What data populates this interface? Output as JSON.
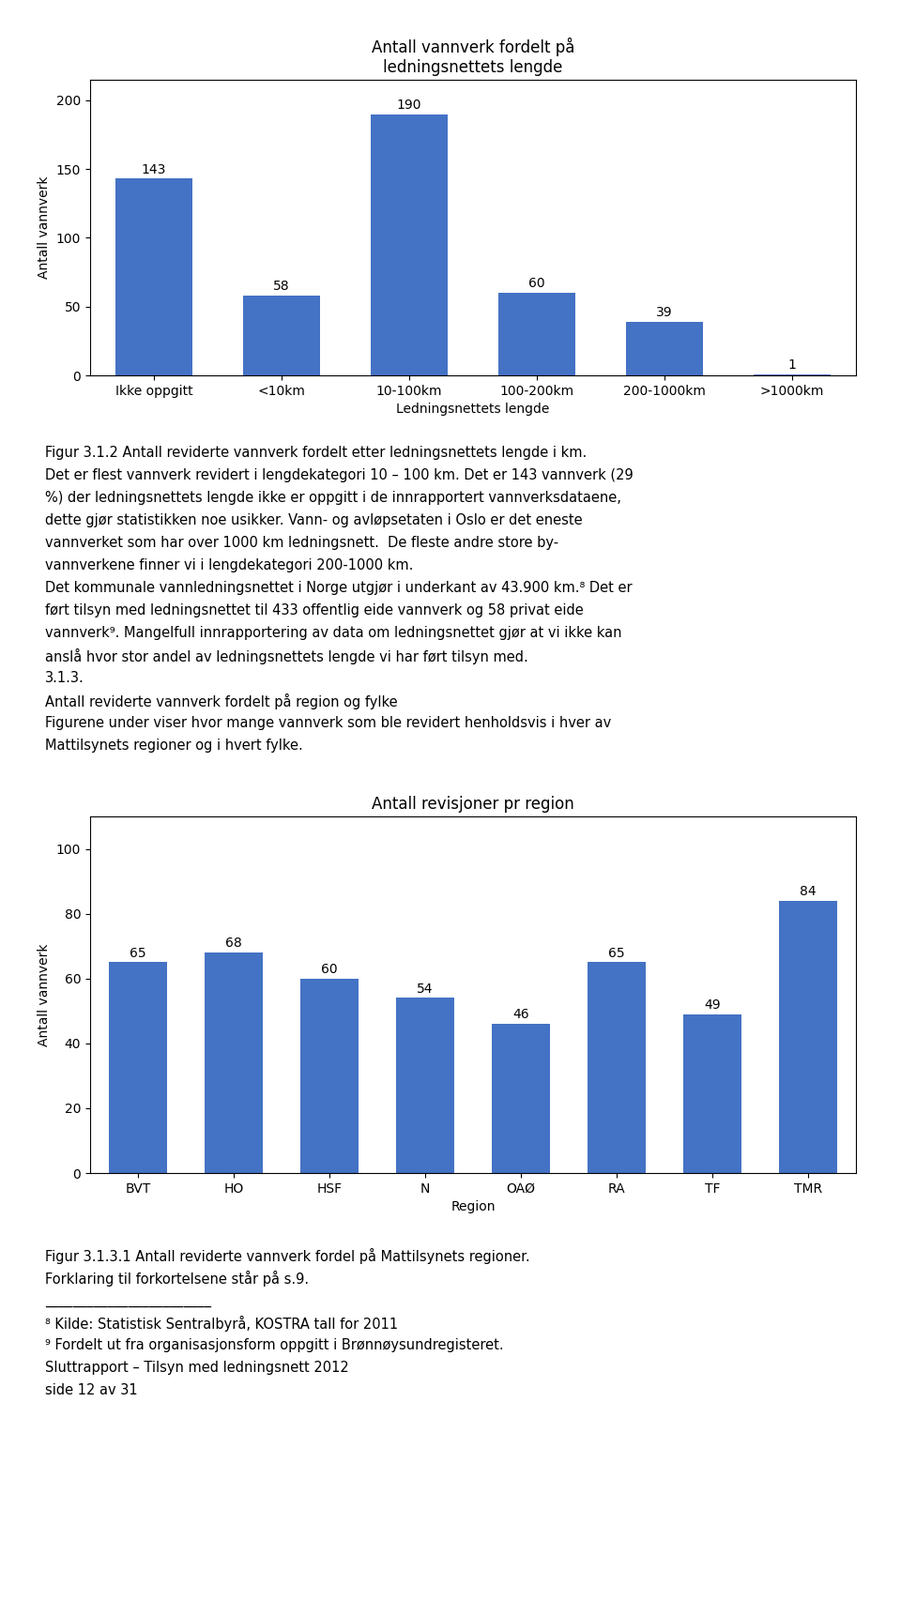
{
  "chart_data": [
    {
      "type": "bar",
      "title": "Antall vannverk fordelt på\nledningsnettets lengde",
      "categories": [
        "Ikke oppgitt",
        "<10km",
        "10-100km",
        "100-200km",
        "200-1000km",
        ">1000km"
      ],
      "values": [
        143,
        58,
        190,
        60,
        39,
        1
      ],
      "color": "#4472C4",
      "ylabel": "Antall vannverk",
      "xlabel": "Ledningsnettets lengde",
      "ylim": [
        0,
        215
      ],
      "yticks": [
        0,
        50,
        100,
        150,
        200
      ],
      "grid": false,
      "data_labels": true,
      "annotations": [
        "Figur 3.1.2 Antall reviderte vannverk fordelt etter ledningsnettets lengde i km.",
        "Det er flest vannverk revidert i lengdekategori 10 – 100 km. Det er 143 vannverk (29",
        "%) der ledningsnettets lengde ikke er oppgitt i de innrapportert vannverksdataene,",
        "dette gjør statistikken noe usikker. Vann- og avløpsetaten i Oslo er det eneste",
        "vannverket som har over 1000 km ledningsnett.  De fleste andre store by-",
        "vannverkene finner vi i lengdekategori 200-1000 km.",
        "Det kommunale vannledningsnettet i Norge utgjør i underkant av 43.900 km.⁸ Det er",
        "ført tilsyn med ledningsnettet til 433 offentlig eide vannverk og 58 privat eide",
        "vannverk⁹. Mangelfull innrapportering av data om ledningsnettet gjør at vi ikke kan",
        "anslå hvor stor andel av ledningsnettets lengde vi har ført tilsyn med.",
        "3.1.3.",
        "Antall reviderte vannverk fordelt på region og fylke",
        "Figurene under viser hvor mange vannverk som ble revidert henholdsvis i hver av",
        "Mattilsynets regioner og i hvert fylke."
      ]
    },
    {
      "type": "bar",
      "title": "Antall revisjoner pr region",
      "categories": [
        "BVT",
        "HO",
        "HSF",
        "N",
        "OAØ",
        "RA",
        "TF",
        "TMR"
      ],
      "values": [
        65,
        68,
        60,
        54,
        46,
        65,
        49,
        84
      ],
      "color": "#4472C4",
      "ylabel": "Antall vannverk",
      "xlabel": "Region",
      "ylim": [
        0,
        110
      ],
      "yticks": [
        0,
        20,
        40,
        60,
        80,
        100
      ],
      "grid": false,
      "data_labels": true,
      "annotations": [
        "Figur 3.1.3.1 Antall reviderte vannverk fordel på Mattilsynets regioner.",
        "Forklaring til forkortelsene står på s.9.",
        "________________________",
        "⁸ Kilde: Statistisk Sentralbyrå, KOSTRA tall for 2011",
        "⁹ Fordelt ut fra organisasjonsform oppgitt i Brønnøysundregisteret.",
        "Sluttrapport – Tilsyn med ledningsnett 2012",
        "side 12 av 31"
      ]
    }
  ]
}
